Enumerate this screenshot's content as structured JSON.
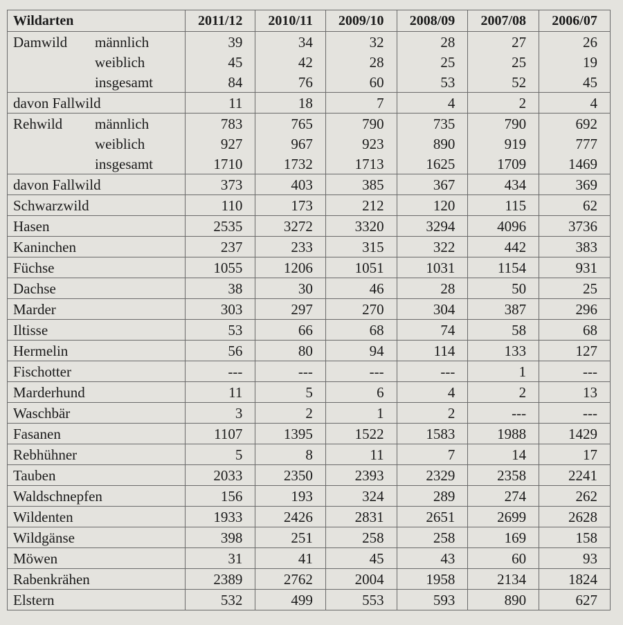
{
  "table": {
    "header": [
      "Wildarten",
      "2011/12",
      "2010/11",
      "2009/10",
      "2008/09",
      "2007/08",
      "2006/07"
    ],
    "rows": [
      {
        "label": "Damwild",
        "sub": "männlich",
        "cells": [
          39,
          34,
          32,
          28,
          27,
          26
        ]
      },
      {
        "sub": "weiblich",
        "cells": [
          45,
          42,
          28,
          25,
          25,
          19
        ]
      },
      {
        "sub": "insgesamt",
        "cells": [
          84,
          76,
          60,
          53,
          52,
          45
        ]
      },
      {
        "label": "davon Fallwild",
        "cells": [
          11,
          18,
          7,
          4,
          2,
          4
        ]
      },
      {
        "label": "Rehwild",
        "sub": "männlich",
        "cells": [
          783,
          765,
          790,
          735,
          790,
          692
        ]
      },
      {
        "sub": "weiblich",
        "cells": [
          927,
          967,
          923,
          890,
          919,
          777
        ]
      },
      {
        "sub": "insgesamt",
        "cells": [
          1710,
          1732,
          1713,
          1625,
          1709,
          1469
        ]
      },
      {
        "label": "davon Fallwild",
        "cells": [
          373,
          403,
          385,
          367,
          434,
          369
        ]
      },
      {
        "label": "Schwarzwild",
        "cells": [
          110,
          173,
          212,
          120,
          115,
          62
        ]
      },
      {
        "label": "Hasen",
        "cells": [
          2535,
          3272,
          3320,
          3294,
          4096,
          3736
        ]
      },
      {
        "label": "Kaninchen",
        "cells": [
          237,
          233,
          315,
          322,
          442,
          383
        ]
      },
      {
        "label": "Füchse",
        "cells": [
          1055,
          1206,
          1051,
          1031,
          1154,
          931
        ]
      },
      {
        "label": "Dachse",
        "cells": [
          38,
          30,
          46,
          28,
          50,
          25
        ]
      },
      {
        "label": "Marder",
        "cells": [
          303,
          297,
          270,
          304,
          387,
          296
        ]
      },
      {
        "label": "Iltisse",
        "cells": [
          53,
          66,
          68,
          74,
          58,
          68
        ]
      },
      {
        "label": "Hermelin",
        "cells": [
          56,
          80,
          94,
          114,
          133,
          127
        ]
      },
      {
        "label": "Fischotter",
        "cells": [
          "---",
          "---",
          "---",
          "---",
          1,
          "---"
        ]
      },
      {
        "label": "Marderhund",
        "cells": [
          11,
          5,
          6,
          4,
          2,
          13
        ]
      },
      {
        "label": "Waschbär",
        "cells": [
          3,
          2,
          1,
          2,
          "---",
          "---"
        ]
      },
      {
        "label": "Fasanen",
        "cells": [
          1107,
          1395,
          1522,
          1583,
          1988,
          1429
        ]
      },
      {
        "label": "Rebhühner",
        "cells": [
          5,
          8,
          11,
          7,
          14,
          17
        ]
      },
      {
        "label": "Tauben",
        "cells": [
          2033,
          2350,
          2393,
          2329,
          2358,
          2241
        ]
      },
      {
        "label": "Waldschnepfen",
        "cells": [
          156,
          193,
          324,
          289,
          274,
          262
        ]
      },
      {
        "label": "Wildenten",
        "cells": [
          1933,
          2426,
          2831,
          2651,
          2699,
          2628
        ]
      },
      {
        "label": "Wildgänse",
        "cells": [
          398,
          251,
          258,
          258,
          169,
          158
        ]
      },
      {
        "label": "Möwen",
        "cells": [
          31,
          41,
          45,
          43,
          60,
          93
        ]
      },
      {
        "label": "Rabenkrähen",
        "cells": [
          2389,
          2762,
          2004,
          1958,
          2134,
          1824
        ]
      },
      {
        "label": "Elstern",
        "cells": [
          532,
          499,
          553,
          593,
          890,
          627
        ]
      }
    ]
  }
}
